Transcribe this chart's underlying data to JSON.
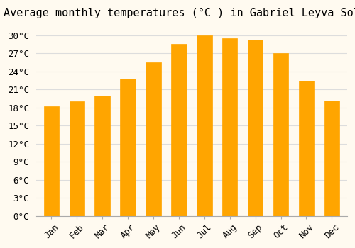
{
  "title": "Average monthly temperatures (°C ) in Gabriel Leyva Solano",
  "months": [
    "Jan",
    "Feb",
    "Mar",
    "Apr",
    "May",
    "Jun",
    "Jul",
    "Aug",
    "Sep",
    "Oct",
    "Nov",
    "Dec"
  ],
  "values": [
    18.2,
    19.0,
    20.0,
    22.8,
    25.5,
    28.6,
    30.0,
    29.5,
    29.3,
    27.0,
    22.5,
    19.2
  ],
  "bar_color": "#FFA500",
  "bar_edge_color": "#F0A000",
  "background_color": "#FFFAF0",
  "grid_color": "#DDDDDD",
  "yticks": [
    0,
    3,
    6,
    9,
    12,
    15,
    18,
    21,
    24,
    27,
    30
  ],
  "ylim": [
    0,
    31.5
  ],
  "title_fontsize": 11,
  "tick_fontsize": 9
}
